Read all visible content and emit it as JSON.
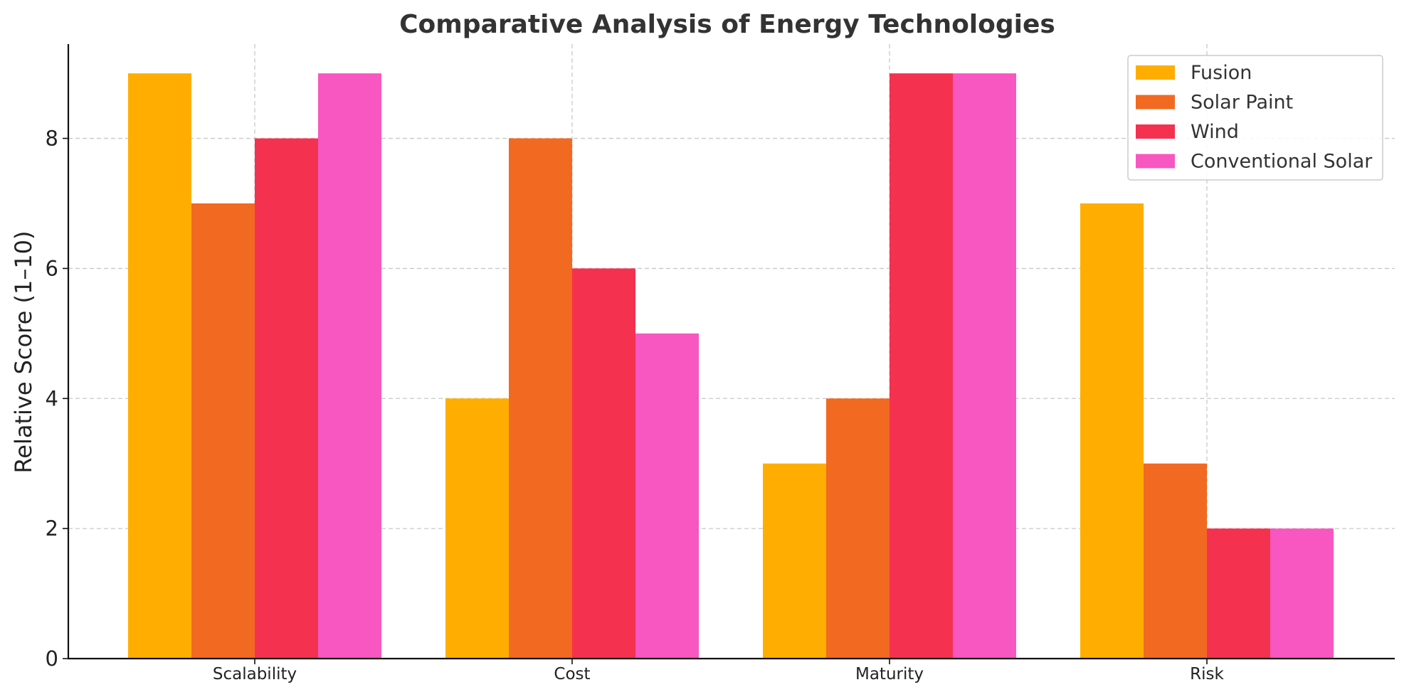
{
  "chart_data": {
    "type": "bar",
    "title": "Comparative Analysis of Energy Technologies",
    "xlabel": "",
    "ylabel": "Relative Score (1–10)",
    "categories": [
      "Scalability",
      "Cost",
      "Maturity",
      "Risk"
    ],
    "series": [
      {
        "name": "Fusion",
        "color": "#FFAE00",
        "values": [
          9,
          4,
          3,
          7
        ]
      },
      {
        "name": "Solar Paint",
        "color": "#F26922",
        "values": [
          7,
          8,
          4,
          3
        ]
      },
      {
        "name": "Wind",
        "color": "#F53150",
        "values": [
          8,
          6,
          9,
          2
        ]
      },
      {
        "name": "Conventional Solar",
        "color": "#F857C1",
        "values": [
          9,
          5,
          9,
          2
        ]
      }
    ],
    "ylim": [
      0,
      9.45
    ],
    "yticks": [
      0,
      2,
      4,
      6,
      8
    ],
    "grid": true,
    "legend_position": "top-right"
  }
}
